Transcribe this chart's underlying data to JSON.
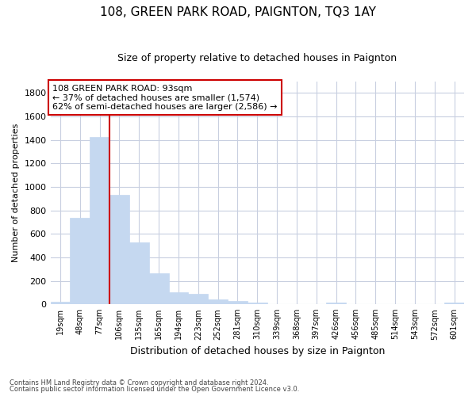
{
  "title": "108, GREEN PARK ROAD, PAIGNTON, TQ3 1AY",
  "subtitle": "Size of property relative to detached houses in Paignton",
  "xlabel": "Distribution of detached houses by size in Paignton",
  "ylabel": "Number of detached properties",
  "footer1": "Contains HM Land Registry data © Crown copyright and database right 2024.",
  "footer2": "Contains public sector information licensed under the Open Government Licence v3.0.",
  "categories": [
    "19sqm",
    "48sqm",
    "77sqm",
    "106sqm",
    "135sqm",
    "165sqm",
    "194sqm",
    "223sqm",
    "252sqm",
    "281sqm",
    "310sqm",
    "339sqm",
    "368sqm",
    "397sqm",
    "426sqm",
    "456sqm",
    "485sqm",
    "514sqm",
    "543sqm",
    "572sqm",
    "601sqm"
  ],
  "values": [
    22,
    735,
    1425,
    935,
    530,
    268,
    103,
    92,
    45,
    28,
    16,
    0,
    0,
    0,
    14,
    0,
    0,
    0,
    0,
    0,
    14
  ],
  "bar_color": "#c5d8f0",
  "bar_edge_color": "#c5d8f0",
  "grid_color": "#c8cfe0",
  "vline_color": "#cc0000",
  "annotation_line1": "108 GREEN PARK ROAD: 93sqm",
  "annotation_line2": "← 37% of detached houses are smaller (1,574)",
  "annotation_line3": "62% of semi-detached houses are larger (2,586) →",
  "annotation_box_color": "white",
  "annotation_box_edge_color": "#cc0000",
  "ylim": [
    0,
    1900
  ],
  "yticks": [
    0,
    200,
    400,
    600,
    800,
    1000,
    1200,
    1400,
    1600,
    1800
  ],
  "background_color": "#ffffff",
  "title_fontsize": 11,
  "subtitle_fontsize": 9,
  "ylabel_fontsize": 8,
  "xlabel_fontsize": 9
}
